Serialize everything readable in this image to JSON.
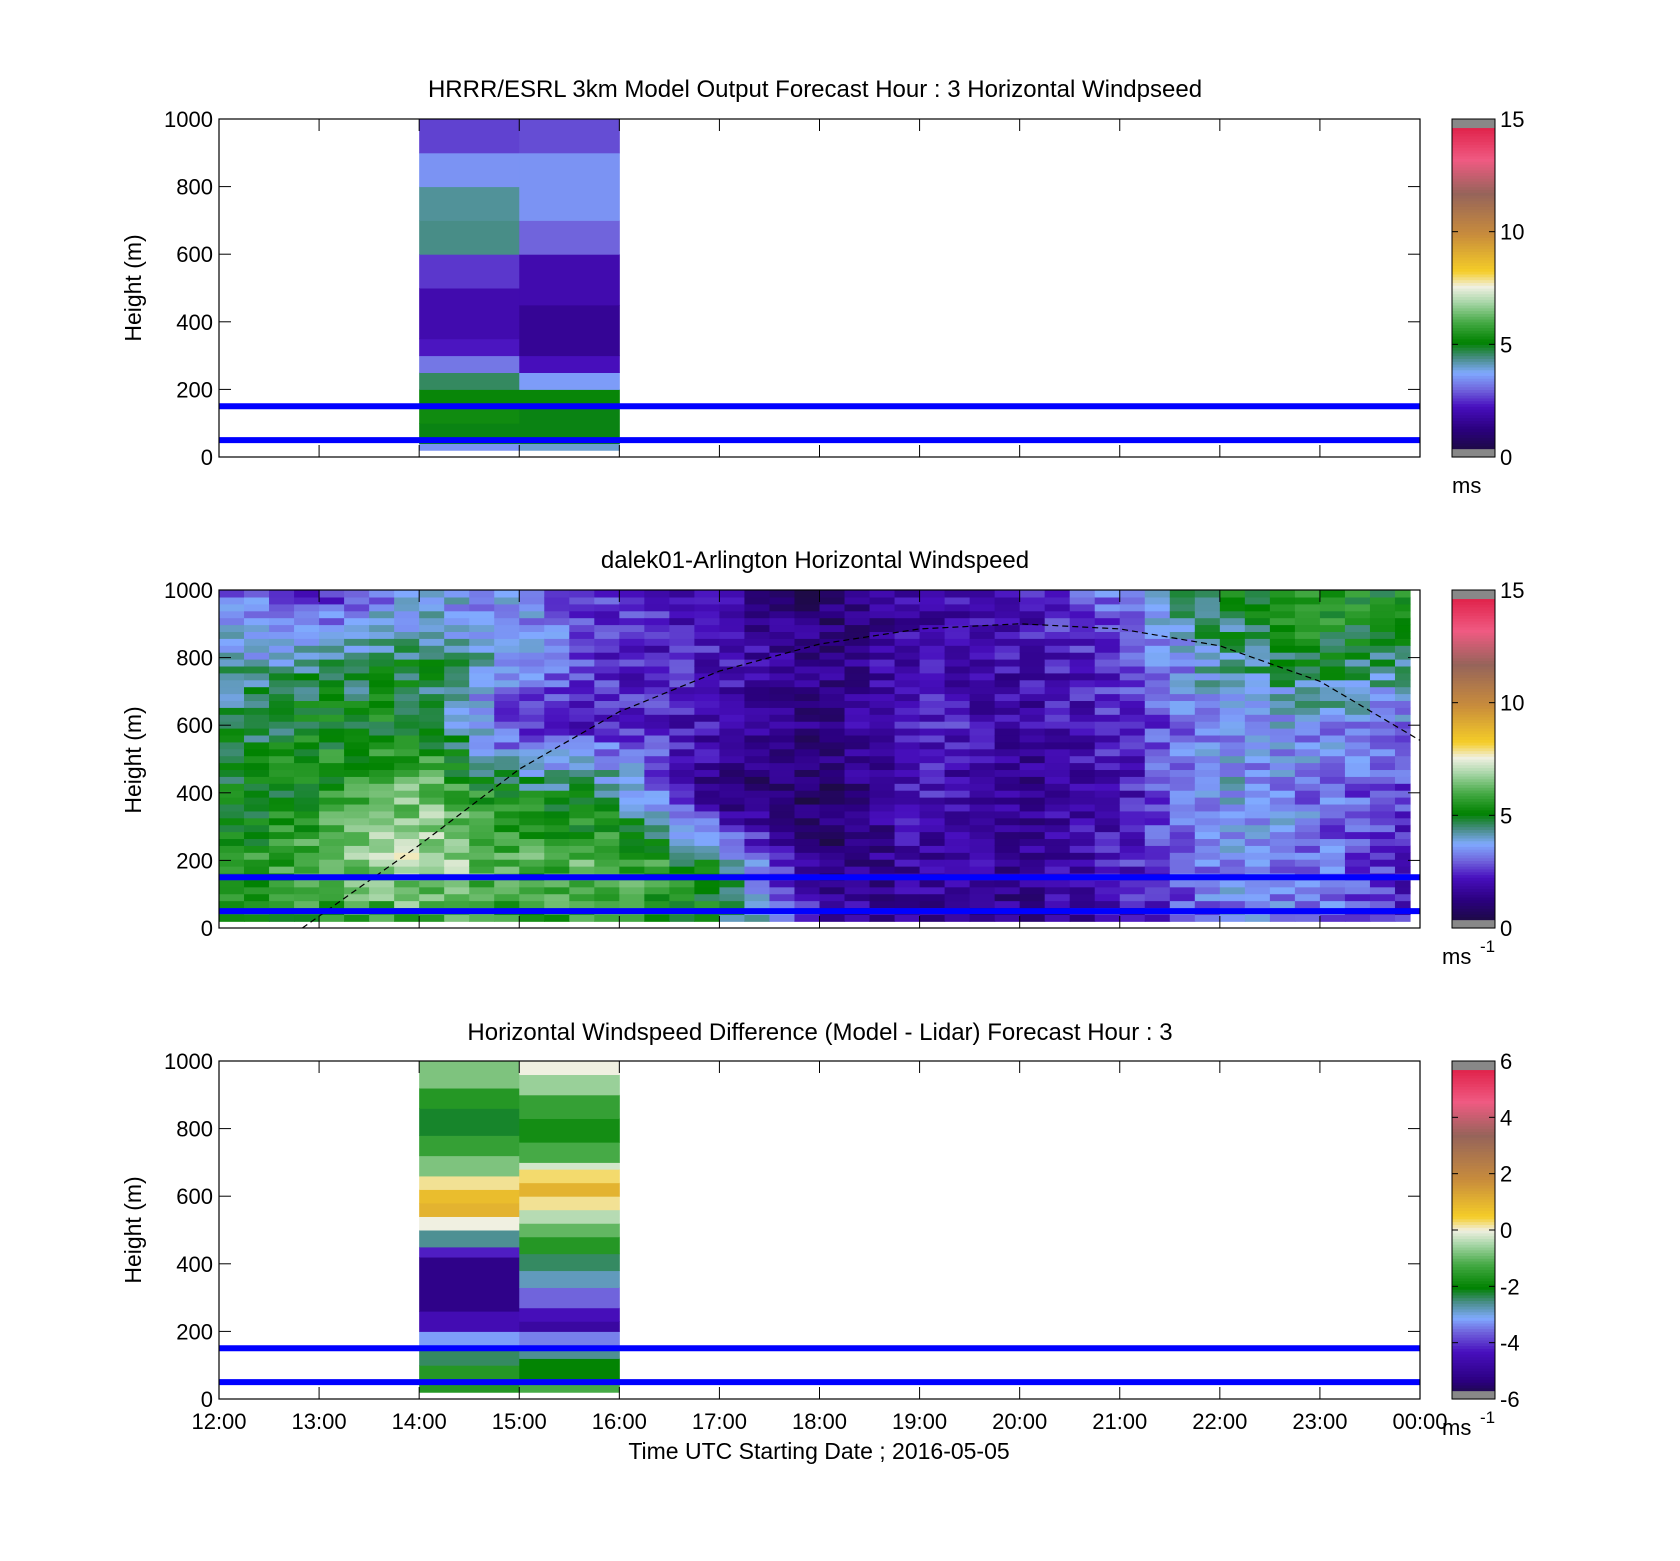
{
  "figure": {
    "xlabel": "Time UTC  Starting Date ; 2016-05-05",
    "x_tick_labels": [
      "12:00",
      "13:00",
      "14:00",
      "15:00",
      "16:00",
      "17:00",
      "18:00",
      "19:00",
      "20:00",
      "21:00",
      "22:00",
      "23:00",
      "00:00"
    ]
  },
  "chart_data": [
    {
      "type": "heatmap",
      "title": "HRRR/ESRL 3km Model Output   Forecast Hour : 3 Horizontal Windpseed",
      "ylabel": "Height (m)",
      "y_ticks": [
        0,
        200,
        400,
        600,
        800,
        1000
      ],
      "xlim_hours": [
        12,
        24
      ],
      "ylim": [
        0,
        1000
      ],
      "reference_lines_m": [
        150,
        50
      ],
      "reference_line_color": "#0000ff",
      "colorbar": {
        "min": 0,
        "max": 15,
        "ticks": [
          0,
          5,
          10,
          15
        ],
        "unit_label": "ms",
        "unit_exponent": ""
      },
      "columns": [
        {
          "t_start": "14:00",
          "t_end": "15:00",
          "layers": [
            {
              "z0": 20,
              "z1": 40,
              "value": 3.5
            },
            {
              "z0": 40,
              "z1": 100,
              "value": 5.0
            },
            {
              "z0": 100,
              "z1": 150,
              "value": 5.3
            },
            {
              "z0": 150,
              "z1": 200,
              "value": 5.2
            },
            {
              "z0": 200,
              "z1": 250,
              "value": 4.6
            },
            {
              "z0": 250,
              "z1": 300,
              "value": 3.2
            },
            {
              "z0": 300,
              "z1": 350,
              "value": 2.3
            },
            {
              "z0": 350,
              "z1": 500,
              "value": 2.0
            },
            {
              "z0": 500,
              "z1": 600,
              "value": 2.6
            },
            {
              "z0": 600,
              "z1": 700,
              "value": 4.4
            },
            {
              "z0": 700,
              "z1": 800,
              "value": 4.3
            },
            {
              "z0": 800,
              "z1": 900,
              "value": 3.5
            },
            {
              "z0": 900,
              "z1": 1000,
              "value": 2.7
            }
          ]
        },
        {
          "t_start": "15:00",
          "t_end": "16:00",
          "layers": [
            {
              "z0": 20,
              "z1": 40,
              "value": 4.0
            },
            {
              "z0": 40,
              "z1": 150,
              "value": 5.0
            },
            {
              "z0": 150,
              "z1": 200,
              "value": 5.2
            },
            {
              "z0": 200,
              "z1": 250,
              "value": 3.6
            },
            {
              "z0": 250,
              "z1": 300,
              "value": 2.2
            },
            {
              "z0": 300,
              "z1": 450,
              "value": 1.6
            },
            {
              "z0": 450,
              "z1": 600,
              "value": 2.0
            },
            {
              "z0": 600,
              "z1": 700,
              "value": 3.0
            },
            {
              "z0": 700,
              "z1": 900,
              "value": 3.5
            },
            {
              "z0": 900,
              "z1": 1000,
              "value": 2.8
            }
          ]
        }
      ]
    },
    {
      "type": "heatmap",
      "title": "dalek01-Arlington  Horizontal Windspeed",
      "ylabel": "Height (m)",
      "y_ticks": [
        0,
        200,
        400,
        600,
        800,
        1000
      ],
      "xlim_hours": [
        12,
        24
      ],
      "ylim": [
        0,
        1000
      ],
      "data_xlim_hours": [
        12,
        23.9
      ],
      "reference_lines_m": [
        150,
        50
      ],
      "reference_line_color": "#0000ff",
      "colorbar": {
        "min": 0,
        "max": 15,
        "ticks": [
          0,
          5,
          10,
          15
        ],
        "unit_label": "ms",
        "unit_exponent": "-1"
      },
      "column_times": [
        "12:00",
        "12:15",
        "12:30",
        "12:45",
        "13:00",
        "13:15",
        "13:30",
        "13:45",
        "14:00",
        "14:15",
        "14:30",
        "14:45",
        "15:00",
        "15:15",
        "15:30",
        "15:45",
        "16:00",
        "16:15",
        "16:30",
        "16:45",
        "17:00",
        "17:15",
        "17:30",
        "17:45",
        "18:00",
        "18:15",
        "18:30",
        "18:45",
        "19:00",
        "19:15",
        "19:30",
        "19:45",
        "20:00",
        "20:15",
        "20:30",
        "20:45",
        "21:00",
        "21:15",
        "21:30",
        "21:45",
        "22:00",
        "22:15",
        "22:30",
        "22:45",
        "23:00",
        "23:15",
        "23:30",
        "23:45"
      ],
      "speed_profile_keyframes_m_s": {
        "heights": [
          0,
          200,
          400,
          600,
          800,
          1000
        ],
        "values_at": [
          {
            "t": "12:00",
            "v": [
              5.0,
              5.2,
              5.0,
              4.6,
              4.0,
              3.2
            ]
          },
          {
            "t": "13:00",
            "v": [
              5.4,
              6.2,
              5.4,
              5.2,
              4.2,
              2.4
            ]
          },
          {
            "t": "14:00",
            "v": [
              5.8,
              7.2,
              6.6,
              5.2,
              4.8,
              3.6
            ]
          },
          {
            "t": "15:00",
            "v": [
              5.5,
              6.0,
              5.0,
              2.2,
              3.6,
              3.4
            ]
          },
          {
            "t": "16:00",
            "v": [
              5.9,
              6.2,
              4.6,
              2.6,
              2.4,
              2.6
            ]
          },
          {
            "t": "17:00",
            "v": [
              5.2,
              4.6,
              1.0,
              2.0,
              2.2,
              2.0
            ]
          },
          {
            "t": "18:00",
            "v": [
              2.2,
              1.0,
              0.8,
              1.2,
              1.4,
              0.8
            ]
          },
          {
            "t": "19:00",
            "v": [
              1.6,
              1.8,
              2.2,
              2.6,
              2.0,
              1.8
            ]
          },
          {
            "t": "20:00",
            "v": [
              1.4,
              1.6,
              1.4,
              1.8,
              2.0,
              2.0
            ]
          },
          {
            "t": "21:00",
            "v": [
              2.0,
              2.2,
              2.0,
              2.4,
              2.6,
              3.4
            ]
          },
          {
            "t": "22:00",
            "v": [
              3.4,
              3.6,
              3.8,
              3.6,
              4.2,
              5.0
            ]
          },
          {
            "t": "23:00",
            "v": [
              3.4,
              3.2,
              3.2,
              3.6,
              5.0,
              5.8
            ]
          },
          {
            "t": "23:45",
            "v": [
              2.2,
              2.4,
              2.6,
              3.2,
              4.6,
              5.2
            ]
          }
        ]
      },
      "curve_dashed": {
        "color": "#000000",
        "points": [
          {
            "t": "12:50",
            "z": 0
          },
          {
            "t": "14:00",
            "z": 245
          },
          {
            "t": "15:00",
            "z": 470
          },
          {
            "t": "16:00",
            "z": 640
          },
          {
            "t": "17:00",
            "z": 760
          },
          {
            "t": "18:00",
            "z": 840
          },
          {
            "t": "19:00",
            "z": 885
          },
          {
            "t": "20:00",
            "z": 900
          },
          {
            "t": "21:00",
            "z": 885
          },
          {
            "t": "22:00",
            "z": 835
          },
          {
            "t": "23:00",
            "z": 730
          },
          {
            "t": "24:00",
            "z": 555
          }
        ]
      }
    },
    {
      "type": "heatmap",
      "title": "Horizontal Windspeed Difference (Model - Lidar) Forecast Hour : 3",
      "ylabel": "Height (m)",
      "y_ticks": [
        0,
        200,
        400,
        600,
        800,
        1000
      ],
      "xlim_hours": [
        12,
        24
      ],
      "ylim": [
        0,
        1000
      ],
      "reference_lines_m": [
        150,
        50
      ],
      "reference_line_color": "#0000ff",
      "colorbar": {
        "min": -6,
        "max": 6,
        "ticks": [
          -6,
          -4,
          -2,
          0,
          2,
          4,
          6
        ],
        "unit_label": "ms",
        "unit_exponent": "-1"
      },
      "columns": [
        {
          "t_start": "14:00",
          "t_end": "15:00",
          "layers": [
            {
              "z0": 20,
              "z1": 100,
              "value": -1.6
            },
            {
              "z0": 100,
              "z1": 150,
              "value": -2.4
            },
            {
              "z0": 150,
              "z1": 200,
              "value": -3.2
            },
            {
              "z0": 200,
              "z1": 260,
              "value": -4.5
            },
            {
              "z0": 260,
              "z1": 420,
              "value": -5.2
            },
            {
              "z0": 420,
              "z1": 450,
              "value": -4.2
            },
            {
              "z0": 450,
              "z1": 500,
              "value": -2.6
            },
            {
              "z0": 500,
              "z1": 540,
              "value": 0.0
            },
            {
              "z0": 540,
              "z1": 580,
              "value": 1.0
            },
            {
              "z0": 580,
              "z1": 620,
              "value": 0.8
            },
            {
              "z0": 620,
              "z1": 660,
              "value": 0.2
            },
            {
              "z0": 660,
              "z1": 720,
              "value": -0.8
            },
            {
              "z0": 720,
              "z1": 780,
              "value": -1.4
            },
            {
              "z0": 780,
              "z1": 860,
              "value": -2.2
            },
            {
              "z0": 860,
              "z1": 920,
              "value": -1.6
            },
            {
              "z0": 920,
              "z1": 1000,
              "value": -0.8
            }
          ]
        },
        {
          "t_start": "15:00",
          "t_end": "16:00",
          "layers": [
            {
              "z0": 20,
              "z1": 60,
              "value": -1.2
            },
            {
              "z0": 60,
              "z1": 120,
              "value": -2.0
            },
            {
              "z0": 120,
              "z1": 150,
              "value": -2.6
            },
            {
              "z0": 150,
              "z1": 200,
              "value": -3.4
            },
            {
              "z0": 200,
              "z1": 230,
              "value": -4.8
            },
            {
              "z0": 230,
              "z1": 270,
              "value": -4.4
            },
            {
              "z0": 270,
              "z1": 330,
              "value": -3.6
            },
            {
              "z0": 330,
              "z1": 380,
              "value": -2.8
            },
            {
              "z0": 380,
              "z1": 430,
              "value": -2.4
            },
            {
              "z0": 430,
              "z1": 480,
              "value": -1.6
            },
            {
              "z0": 480,
              "z1": 520,
              "value": -1.0
            },
            {
              "z0": 520,
              "z1": 560,
              "value": -0.4
            },
            {
              "z0": 560,
              "z1": 600,
              "value": 0.2
            },
            {
              "z0": 600,
              "z1": 640,
              "value": 1.0
            },
            {
              "z0": 640,
              "z1": 680,
              "value": 0.3
            },
            {
              "z0": 680,
              "z1": 700,
              "value": -0.2
            },
            {
              "z0": 700,
              "z1": 760,
              "value": -1.2
            },
            {
              "z0": 760,
              "z1": 830,
              "value": -1.8
            },
            {
              "z0": 830,
              "z1": 900,
              "value": -1.4
            },
            {
              "z0": 900,
              "z1": 960,
              "value": -0.6
            },
            {
              "z0": 960,
              "z1": 1000,
              "value": 0.0
            }
          ]
        }
      ]
    }
  ]
}
